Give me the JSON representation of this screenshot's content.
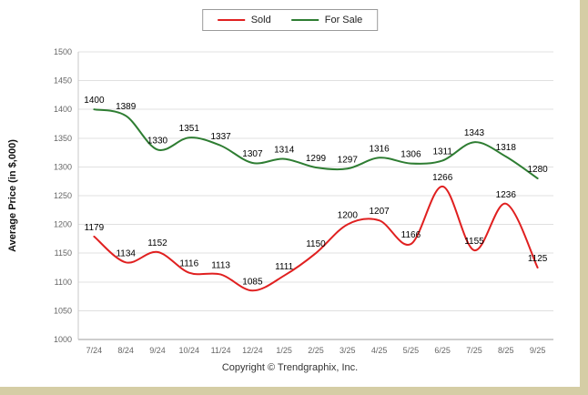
{
  "footer": {
    "copyright": "Copyright © Trendgraphix, Inc."
  },
  "colors": {
    "frame_border": "#d5cda5",
    "grid": "#e0e0e0",
    "baseline": "#9e9e9e",
    "left_axis": "#c8c8c8",
    "axis_text": "#666666",
    "point_label_text": "#000000",
    "sold": "#e02020",
    "for_sale": "#2e7d32"
  },
  "chart_data": {
    "type": "line",
    "title": "",
    "xlabel": "",
    "ylabel": "Average Price (in $,000)",
    "ylim": [
      1000,
      1500
    ],
    "y_ticks": [
      1000,
      1050,
      1100,
      1150,
      1200,
      1250,
      1300,
      1350,
      1400,
      1450,
      1500
    ],
    "grid": true,
    "legend_position": "top-center",
    "categories": [
      "7/24",
      "8/24",
      "9/24",
      "10/24",
      "11/24",
      "12/24",
      "1/25",
      "2/25",
      "3/25",
      "4/25",
      "5/25",
      "6/25",
      "7/25",
      "8/25",
      "9/25"
    ],
    "series": [
      {
        "name": "Sold",
        "color": "#e02020",
        "values": [
          1179,
          1134,
          1152,
          1116,
          1113,
          1085,
          1111,
          1150,
          1200,
          1207,
          1166,
          1266,
          1155,
          1236,
          1125
        ]
      },
      {
        "name": "For Sale",
        "color": "#2e7d32",
        "values": [
          1400,
          1389,
          1330,
          1351,
          1337,
          1307,
          1314,
          1299,
          1297,
          1316,
          1306,
          1311,
          1343,
          1318,
          1280
        ]
      }
    ]
  }
}
